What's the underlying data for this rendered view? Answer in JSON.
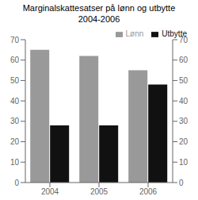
{
  "chart_data": {
    "type": "bar",
    "title": "Marginalskattesatser på lønn og utbytte\n2004-2006",
    "categories": [
      "2004",
      "2005",
      "2006"
    ],
    "series": [
      {
        "name": "Lønn",
        "color": "#999999",
        "values": [
          65,
          62,
          55
        ]
      },
      {
        "name": "Utbytte",
        "color": "#111111",
        "values": [
          28,
          28,
          48
        ]
      }
    ],
    "ylim": [
      0,
      70
    ],
    "yticks": [
      0,
      10,
      20,
      30,
      40,
      50,
      60,
      70
    ],
    "y2lim": [
      0,
      70
    ],
    "y2ticks": [
      0,
      10,
      20,
      30,
      40,
      50,
      60,
      70
    ],
    "grid": false,
    "legend": "upper right"
  }
}
